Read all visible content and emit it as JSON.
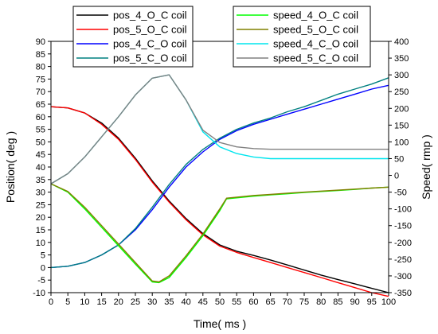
{
  "chart_data": {
    "type": "line",
    "xlabel": "Time( ms )",
    "ylabel_left": "Position( deg )",
    "ylabel_right": "Speed( rmp )",
    "xlim": [
      0,
      100
    ],
    "ylim_left": [
      -10,
      90
    ],
    "ylim_right": [
      -350,
      400
    ],
    "x_ticks": [
      "0",
      "5",
      "10",
      "15",
      "20",
      "25",
      "30",
      "35",
      "40",
      "45",
      "50",
      "55",
      "60",
      "65",
      "70",
      "75",
      "80",
      "85",
      "90",
      "95",
      "100"
    ],
    "y_ticks_left": [
      "-10",
      "-5",
      "0",
      "5",
      "10",
      "15",
      "20",
      "25",
      "30",
      "35",
      "40",
      "45",
      "50",
      "55",
      "60",
      "65",
      "70",
      "75",
      "80",
      "85",
      "90"
    ],
    "y_ticks_right": [
      "-350",
      "-300",
      "-250",
      "-200",
      "-150",
      "-100",
      "-50",
      "0",
      "50",
      "100",
      "150",
      "200",
      "250",
      "300",
      "350",
      "400"
    ],
    "grid": false,
    "legend_placement": "top",
    "series": [
      {
        "name": "pos_4_O_C coil",
        "axis": "left",
        "color": "#000000",
        "x": [
          0,
          5,
          10,
          15,
          20,
          25,
          30,
          35,
          40,
          45,
          50,
          55,
          60,
          65,
          70,
          75,
          80,
          85,
          90,
          95,
          100
        ],
        "y": [
          64,
          63.5,
          61.5,
          57.5,
          51.5,
          43.5,
          34.5,
          26.5,
          19.5,
          13.5,
          9,
          6.5,
          4.8,
          3,
          1,
          -1,
          -3,
          -4.8,
          -6.5,
          -8.3,
          -10
        ]
      },
      {
        "name": "pos_5_O_C coil",
        "axis": "left",
        "color": "#ff0000",
        "x": [
          0,
          5,
          10,
          15,
          20,
          25,
          30,
          35,
          40,
          45,
          50,
          55,
          60,
          65,
          70,
          75,
          80,
          85,
          90,
          95,
          100
        ],
        "y": [
          64,
          63.5,
          61.5,
          57,
          51,
          43,
          34,
          26,
          19,
          13,
          8.5,
          6,
          4,
          2,
          0,
          -2,
          -4,
          -6,
          -8,
          -10,
          -11.5
        ]
      },
      {
        "name": "pos_4_C_O coil",
        "axis": "left",
        "color": "#0000ff",
        "x": [
          0,
          5,
          10,
          15,
          20,
          25,
          30,
          35,
          40,
          45,
          50,
          55,
          60,
          65,
          70,
          75,
          80,
          85,
          90,
          95,
          100
        ],
        "y": [
          0,
          0.5,
          2,
          5,
          9,
          15,
          23,
          32,
          40,
          46,
          51,
          54.5,
          57,
          59,
          61,
          63,
          65,
          67,
          69,
          71,
          72.5
        ]
      },
      {
        "name": "pos_5_C_O coil",
        "axis": "left",
        "color": "#008080",
        "x": [
          0,
          5,
          10,
          15,
          20,
          25,
          30,
          35,
          40,
          45,
          50,
          55,
          60,
          65,
          70,
          75,
          80,
          85,
          90,
          95,
          100
        ],
        "y": [
          0,
          0.5,
          2,
          5,
          9,
          15.5,
          24,
          33,
          41,
          47,
          51.5,
          55,
          57.5,
          59.5,
          62,
          64,
          66.5,
          69,
          71,
          73,
          75.5
        ]
      },
      {
        "name": "speed_4_O_C coil",
        "axis": "right",
        "color": "#00ff00",
        "x": [
          0,
          5,
          10,
          15,
          20,
          25,
          30,
          32,
          35,
          40,
          45,
          50,
          52,
          55,
          60,
          65,
          70,
          75,
          80,
          85,
          90,
          95,
          100
        ],
        "y": [
          -25,
          -50,
          -100,
          -155,
          -210,
          -265,
          -318,
          -320,
          -305,
          -245,
          -180,
          -105,
          -70,
          -67,
          -62,
          -58,
          -55,
          -51,
          -48,
          -45,
          -42,
          -38,
          -35
        ]
      },
      {
        "name": "speed_5_O_C coil",
        "axis": "right",
        "color": "#808000",
        "x": [
          0,
          5,
          10,
          15,
          20,
          25,
          30,
          32,
          35,
          40,
          45,
          50,
          52,
          55,
          60,
          65,
          70,
          75,
          80,
          85,
          90,
          95,
          100
        ],
        "y": [
          -25,
          -48,
          -95,
          -150,
          -205,
          -260,
          -315,
          -318,
          -300,
          -240,
          -175,
          -100,
          -68,
          -65,
          -60,
          -57,
          -53,
          -50,
          -47,
          -44,
          -41,
          -38,
          -35
        ]
      },
      {
        "name": "speed_4_C_O coil",
        "axis": "right",
        "color": "#00e5ee",
        "x": [
          0,
          5,
          10,
          15,
          20,
          25,
          30,
          35,
          40,
          45,
          50,
          55,
          60,
          65,
          70,
          75,
          80,
          85,
          90,
          95,
          100
        ],
        "y": [
          -25,
          5,
          55,
          115,
          175,
          240,
          290,
          300,
          225,
          130,
          85,
          65,
          55,
          50,
          50,
          50,
          50,
          50,
          50,
          50,
          50
        ]
      },
      {
        "name": "speed_5_C_O coil",
        "axis": "right",
        "color": "#808080",
        "x": [
          0,
          5,
          10,
          15,
          20,
          25,
          30,
          35,
          40,
          45,
          50,
          55,
          60,
          65,
          70,
          75,
          80,
          85,
          90,
          95,
          100
        ],
        "y": [
          -25,
          5,
          55,
          115,
          175,
          240,
          290,
          300,
          225,
          135,
          98,
          85,
          80,
          78,
          78,
          78,
          78,
          78,
          78,
          78,
          78
        ]
      }
    ]
  }
}
